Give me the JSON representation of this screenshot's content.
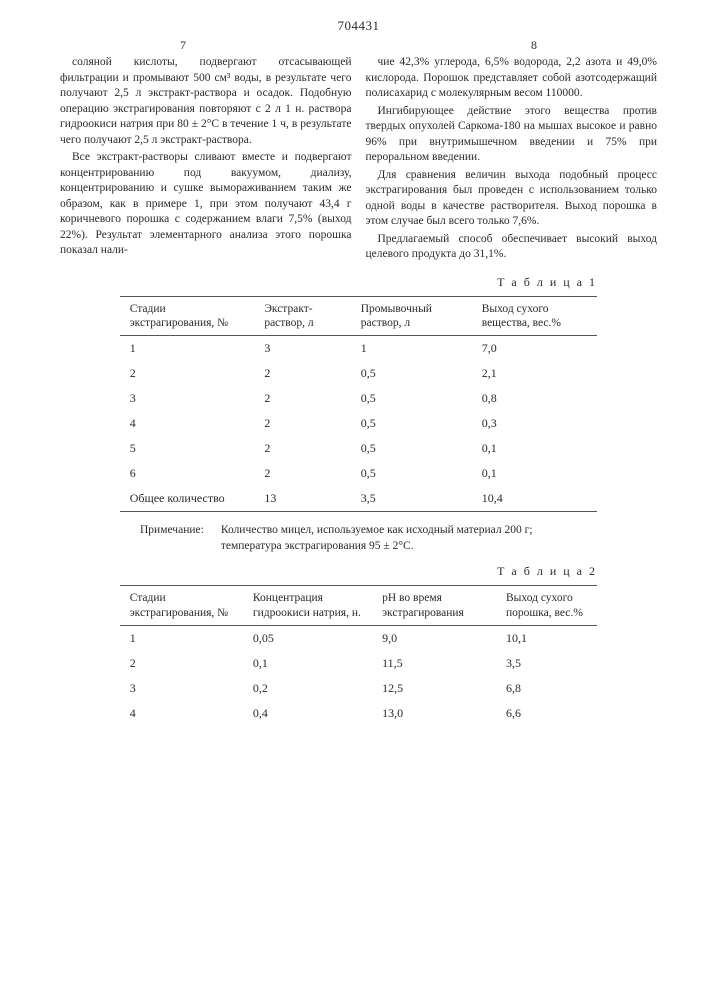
{
  "docNumber": "704431",
  "pageLeft": "7",
  "pageRight": "8",
  "leftParas": [
    "соляной кислоты, подвергают отсасывающей фильтрации и промывают 500 см³ воды, в результате чего получают 2,5 л экстракт-раствора и осадок. Подобную операцию экстрагирования повторяют с 2 л 1 н. раствора гидроокиси натрия при 80 ± 2°С в течение 1 ч, в результате чего получают 2,5 л экстракт-раствора.",
    "Все экстракт-растворы сливают вместе и подвергают концентрированию под вакуумом, диализу, концентрированию и сушке вымораживанием таким же образом, как в примере 1, при этом получают 43,4 г коричневого порошка с содержанием влаги 7,5% (выход 22%). Результат элементарного анализа этого порошка показал нали-"
  ],
  "rightParas": [
    "чие 42,3% углерода, 6,5% водорода, 2,2 азота и 49,0% кислорода. Порошок представляет собой азотсодержащий полисахарид с молекулярным весом 110000.",
    "Ингибирующее действие этого вещества против твердых опухолей Саркома-180 на мышах высокое и равно 96% при внутримышечном введении и 75% при пероральном введении.",
    "Для сравнения величин выхода подобный процесс экстрагирования был проведен с использованием только одной воды в качестве растворителя. Выход порошка в этом случае был всего только 7,6%.",
    "Предлагаемый способ обеспечивает высокий выход целевого продукта до 31,1%."
  ],
  "table1": {
    "label": "Т а б л и ц а  1",
    "headers": [
      "Стадии экстрагирования, №",
      "Экстракт-раствор, л",
      "Промывочный раствор, л",
      "Выход сухого вещества, вес.%"
    ],
    "rows": [
      [
        "1",
        "3",
        "1",
        "7,0"
      ],
      [
        "2",
        "2",
        "0,5",
        "2,1"
      ],
      [
        "3",
        "2",
        "0,5",
        "0,8"
      ],
      [
        "4",
        "2",
        "0,5",
        "0,3"
      ],
      [
        "5",
        "2",
        "0,5",
        "0,1"
      ],
      [
        "6",
        "2",
        "0,5",
        "0,1"
      ]
    ],
    "totalLabel": "Общее количество",
    "totalRow": [
      "13",
      "3,5",
      "10,4"
    ],
    "noteLabel": "Примечание:",
    "noteText": "Количество мицел, используемое как исходный материал 200 г; температура экстрагирования 95 ± 2°С."
  },
  "table2": {
    "label": "Т а б л и ц а  2",
    "headers": [
      "Стадии экстрагирования, №",
      "Концентрация гидроокиси натрия, н.",
      "pH во время экстрагирования",
      "Выход сухого порошка, вес.%"
    ],
    "rows": [
      [
        "1",
        "0,05",
        "9,0",
        "10,1"
      ],
      [
        "2",
        "0,1",
        "11,5",
        "3,5"
      ],
      [
        "3",
        "0,2",
        "12,5",
        "6,8"
      ],
      [
        "4",
        "0,4",
        "13,0",
        "6,6"
      ]
    ]
  }
}
